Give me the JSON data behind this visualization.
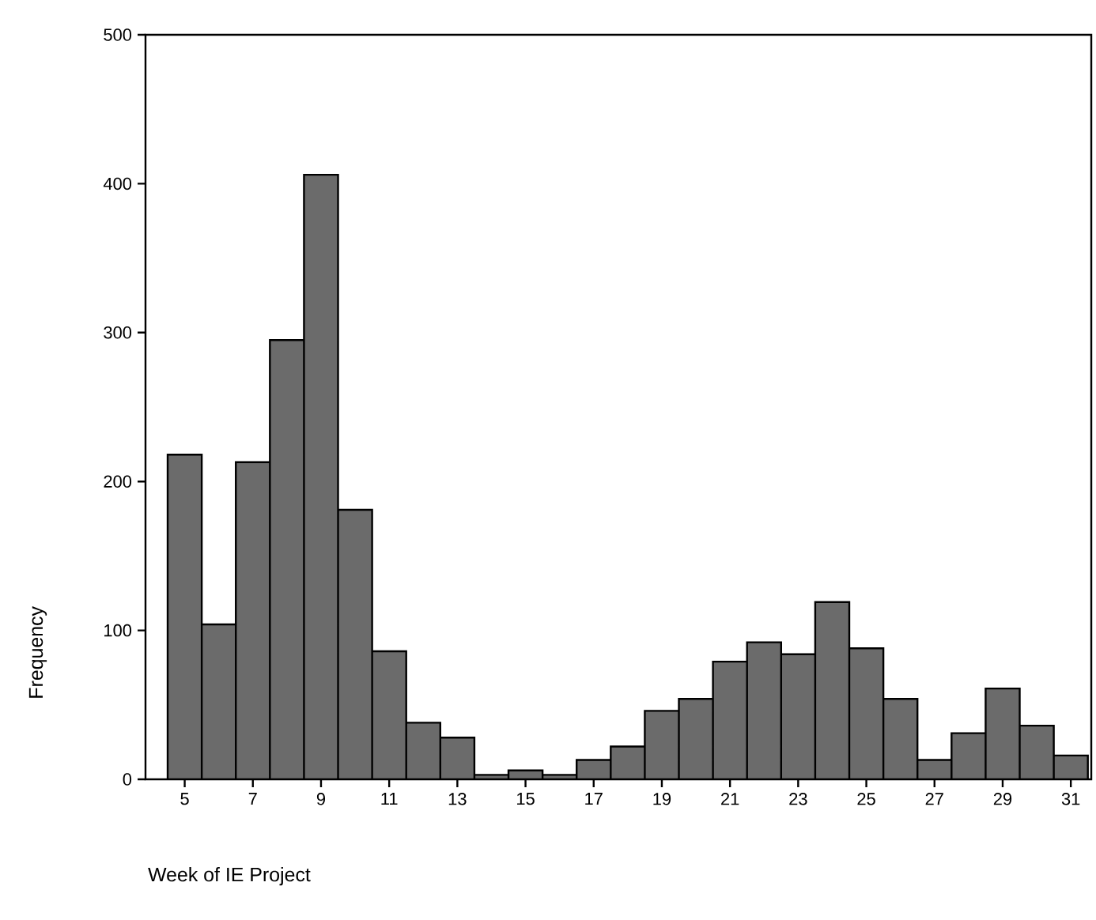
{
  "chart_data": {
    "type": "histogram",
    "xlabel": "Week of IE Project",
    "ylabel": "Frequency",
    "bins": [
      4.5,
      5.5,
      6.5,
      7.5,
      8.5,
      9.5,
      10.5,
      11.5,
      12.5,
      13.5,
      14.5,
      15.5,
      16.5,
      17.5,
      18.5,
      19.5,
      20.5,
      21.5,
      22.5,
      23.5,
      24.5,
      25.5,
      26.5,
      27.5,
      28.5,
      29.5,
      30.5,
      31.5
    ],
    "values": [
      218,
      104,
      213,
      295,
      406,
      181,
      86,
      38,
      28,
      3,
      6,
      3,
      13,
      22,
      46,
      54,
      79,
      92,
      84,
      119,
      88,
      54,
      13,
      31,
      61,
      36,
      16
    ],
    "color": "#6b6b6b",
    "xlim": [
      3.85,
      31.6
    ],
    "ylim": [
      0,
      500
    ],
    "xticks": [
      5,
      7,
      9,
      11,
      13,
      15,
      17,
      19,
      21,
      23,
      25,
      27,
      29,
      31
    ],
    "yticks": [
      0,
      100,
      200,
      300,
      400,
      500
    ],
    "grid": false
  }
}
